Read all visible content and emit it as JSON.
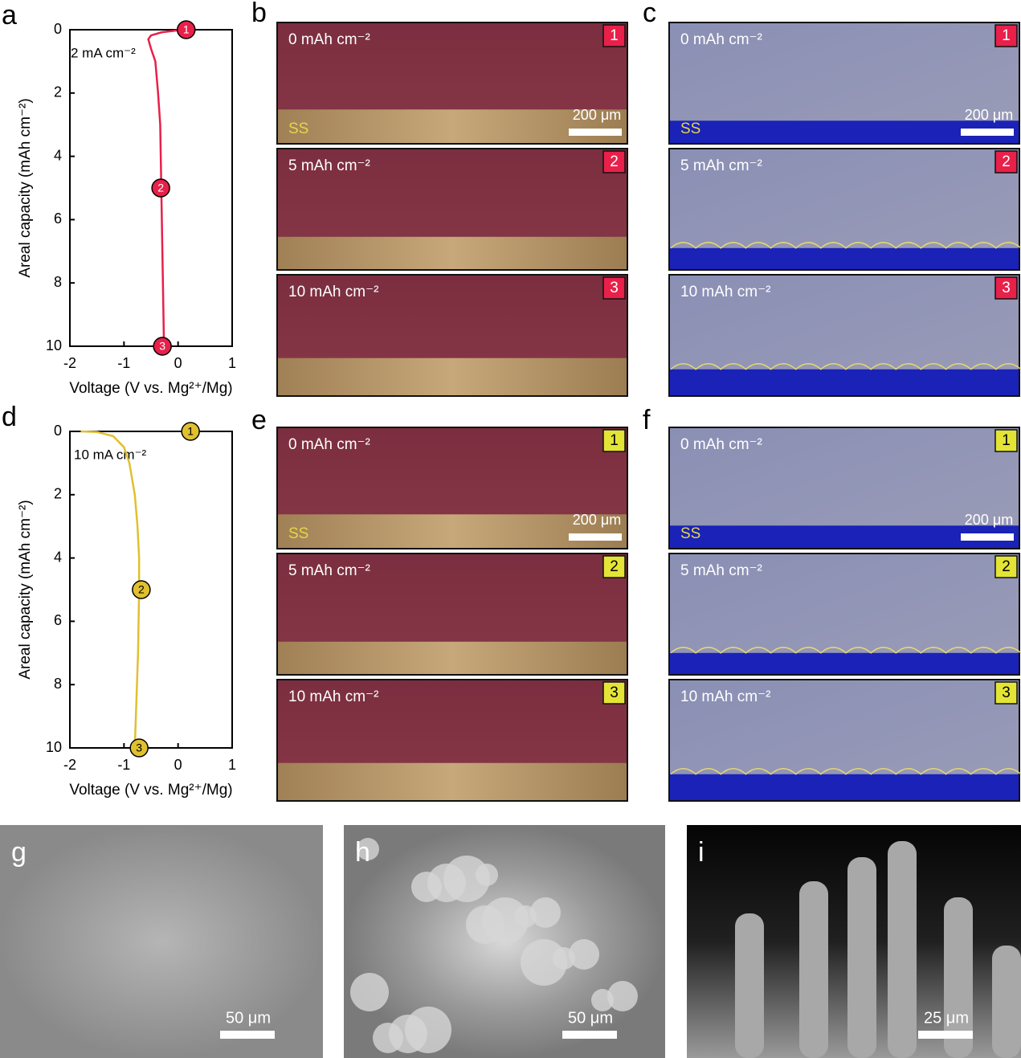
{
  "chart_data": [
    {
      "type": "line",
      "panel_label": "a",
      "annotation": "2 mA cm⁻²",
      "x_label": "Voltage (V vs. Mg²⁺/Mg)",
      "y_label": "Areal capacity (mAh cm⁻²)",
      "xlim": [
        -2,
        1
      ],
      "ylim": [
        0,
        10
      ],
      "xticks": [
        -2,
        -1,
        0,
        1
      ],
      "yticks": [
        0,
        2,
        4,
        6,
        8,
        10
      ],
      "y_inverted": true,
      "color": "#e8204a",
      "series": [
        {
          "color": "#e8204a",
          "x": [
            0.2,
            0.0,
            -0.3,
            -0.5,
            -0.55,
            -0.5,
            -0.42,
            -0.37,
            -0.33,
            -0.31,
            -0.29,
            -0.27,
            -0.26
          ],
          "values": [
            0,
            0.02,
            0.08,
            0.18,
            0.3,
            0.6,
            1.0,
            2,
            3,
            5,
            7,
            9,
            10
          ]
        }
      ],
      "markers": {
        "x": [
          0.15,
          -0.32,
          -0.29
        ],
        "values": [
          0,
          5,
          10
        ],
        "labels": [
          "1",
          "2",
          "3"
        ]
      }
    },
    {
      "type": "line",
      "panel_label": "d",
      "annotation": "10 mA cm⁻²",
      "x_label": "Voltage (V vs. Mg²⁺/Mg)",
      "y_label": "Areal capacity (mAh cm⁻²)",
      "xlim": [
        -2,
        1
      ],
      "ylim": [
        0,
        10
      ],
      "xticks": [
        -2,
        -1,
        0,
        1
      ],
      "yticks": [
        0,
        2,
        4,
        6,
        8,
        10
      ],
      "y_inverted": true,
      "color": "#e0c030",
      "series": [
        {
          "color": "#e0c030",
          "x": [
            -1.8,
            -1.5,
            -1.2,
            -1.0,
            -0.9,
            -0.8,
            -0.75,
            -0.72,
            -0.72,
            -0.74,
            -0.78,
            -0.8
          ],
          "values": [
            0,
            0.02,
            0.15,
            0.5,
            1.0,
            2,
            3,
            4,
            5,
            7,
            9,
            10
          ]
        }
      ],
      "markers": {
        "x": [
          0.23,
          -0.68,
          -0.72
        ],
        "values": [
          0,
          5,
          10
        ],
        "labels": [
          "1",
          "2",
          "3"
        ]
      }
    }
  ],
  "image_panels": [
    {
      "label": "b",
      "frames": [
        {
          "caption": "0 mAh cm⁻²",
          "badge": "1",
          "scale_bar": "200 μm",
          "substrate": "SS"
        },
        {
          "caption": "5 mAh cm⁻²",
          "badge": "2"
        },
        {
          "caption": "10 mAh cm⁻²",
          "badge": "3"
        }
      ]
    },
    {
      "label": "c",
      "frames": [
        {
          "caption": "0 mAh cm⁻²",
          "badge": "1",
          "scale_bar": "200 μm",
          "substrate": "SS"
        },
        {
          "caption": "5 mAh cm⁻²",
          "badge": "2"
        },
        {
          "caption": "10 mAh cm⁻²",
          "badge": "3"
        }
      ]
    },
    {
      "label": "e",
      "frames": [
        {
          "caption": "0 mAh cm⁻²",
          "badge": "1",
          "scale_bar": "200 μm",
          "substrate": "SS"
        },
        {
          "caption": "5 mAh cm⁻²",
          "badge": "2"
        },
        {
          "caption": "10 mAh cm⁻²",
          "badge": "3"
        }
      ]
    },
    {
      "label": "f",
      "frames": [
        {
          "caption": "0 mAh cm⁻²",
          "badge": "1",
          "scale_bar": "200 μm",
          "substrate": "SS"
        },
        {
          "caption": "5 mAh cm⁻²",
          "badge": "2"
        },
        {
          "caption": "10 mAh cm⁻²",
          "badge": "3"
        }
      ]
    }
  ],
  "sem_panels": [
    {
      "label": "g",
      "scale_bar": "50 μm"
    },
    {
      "label": "h",
      "scale_bar": "50 μm"
    },
    {
      "label": "i",
      "scale_bar": "25 μm"
    }
  ]
}
